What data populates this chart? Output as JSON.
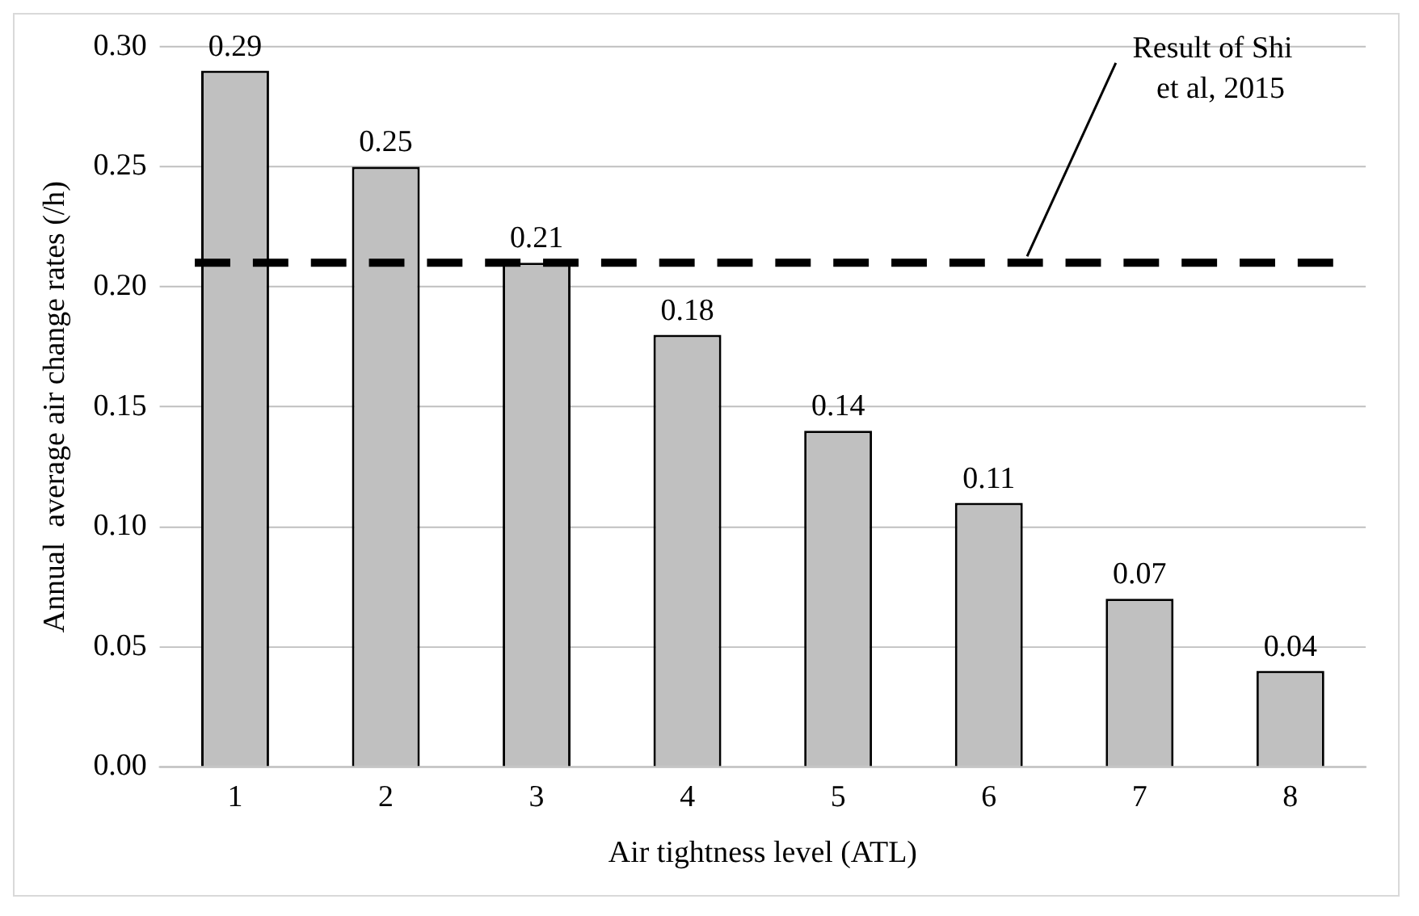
{
  "chart_data": {
    "type": "bar",
    "xlabel": "Air tightness level (ATL)",
    "ylabel": "Annual  average air change rates (/h)",
    "categories": [
      "1",
      "2",
      "3",
      "4",
      "5",
      "6",
      "7",
      "8"
    ],
    "values": [
      0.29,
      0.25,
      0.21,
      0.18,
      0.14,
      0.11,
      0.07,
      0.04
    ],
    "color": "#c0c0c0",
    "ylim": [
      0,
      0.3
    ],
    "yticks": [
      {
        "value": 0,
        "label": "0.00"
      },
      {
        "value": 0.05,
        "label": "0.05"
      },
      {
        "value": 0.1,
        "label": "0.10"
      },
      {
        "value": 0.15,
        "label": "0.15"
      },
      {
        "value": 0.2,
        "label": "0.20"
      },
      {
        "value": 0.25,
        "label": "0.25"
      },
      {
        "value": 0.3,
        "label": "0.30"
      }
    ],
    "grid": "y",
    "legend": false,
    "data_labels": true,
    "ref_lines": [
      {
        "axis": "y",
        "value": 0.21,
        "label": "Result of Shi et al, 2015",
        "color": "#000000",
        "line_style": "dashed"
      }
    ]
  }
}
